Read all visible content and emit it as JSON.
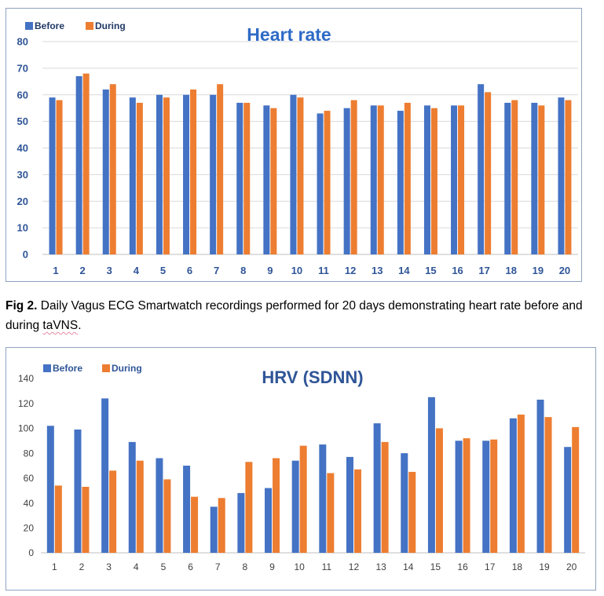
{
  "caption": {
    "label": "Fig 2.",
    "text_part1": " Daily Vagus ECG Smartwatch recordings performed for 20 days demonstrating heart rate before and during ",
    "underlined_word": "taVNS",
    "text_part2": "."
  },
  "colors": {
    "before": "#4472c4",
    "during": "#ed7d31",
    "grid": "#d9d9d9",
    "title1": "#2e6bc6",
    "title2": "#2f5597"
  },
  "chart_data": [
    {
      "type": "bar",
      "title": "Heart rate",
      "categories": [
        "1",
        "2",
        "3",
        "4",
        "5",
        "6",
        "7",
        "8",
        "9",
        "10",
        "11",
        "12",
        "13",
        "14",
        "15",
        "16",
        "17",
        "18",
        "19",
        "20"
      ],
      "series": [
        {
          "name": "Before",
          "values": [
            59,
            67,
            62,
            59,
            60,
            60,
            60,
            57,
            56,
            60,
            53,
            55,
            56,
            54,
            56,
            56,
            64,
            57,
            57,
            59
          ]
        },
        {
          "name": "During",
          "values": [
            58,
            68,
            64,
            57,
            59,
            62,
            64,
            57,
            55,
            59,
            54,
            58,
            56,
            57,
            55,
            56,
            61,
            58,
            56,
            58
          ]
        }
      ],
      "ylim": [
        0,
        80
      ],
      "yticks": [
        "0",
        "10",
        "20",
        "30",
        "40",
        "50",
        "60",
        "70",
        "80"
      ],
      "grid": true,
      "legend_position": "top-left"
    },
    {
      "type": "bar",
      "title": "HRV (SDNN)",
      "categories": [
        "1",
        "2",
        "3",
        "4",
        "5",
        "6",
        "7",
        "8",
        "9",
        "10",
        "11",
        "12",
        "13",
        "14",
        "15",
        "16",
        "17",
        "18",
        "19",
        "20"
      ],
      "series": [
        {
          "name": "Before",
          "values": [
            102,
            99,
            124,
            89,
            76,
            70,
            37,
            48,
            52,
            74,
            87,
            77,
            104,
            80,
            125,
            90,
            90,
            108,
            123,
            85
          ]
        },
        {
          "name": "During",
          "values": [
            54,
            53,
            66,
            74,
            59,
            45,
            44,
            73,
            76,
            86,
            64,
            67,
            89,
            65,
            100,
            92,
            91,
            111,
            109,
            101
          ]
        }
      ],
      "ylim": [
        0,
        140
      ],
      "yticks": [
        "0",
        "20",
        "40",
        "60",
        "80",
        "100",
        "120",
        "140"
      ],
      "grid": false,
      "legend_position": "top-left"
    }
  ]
}
